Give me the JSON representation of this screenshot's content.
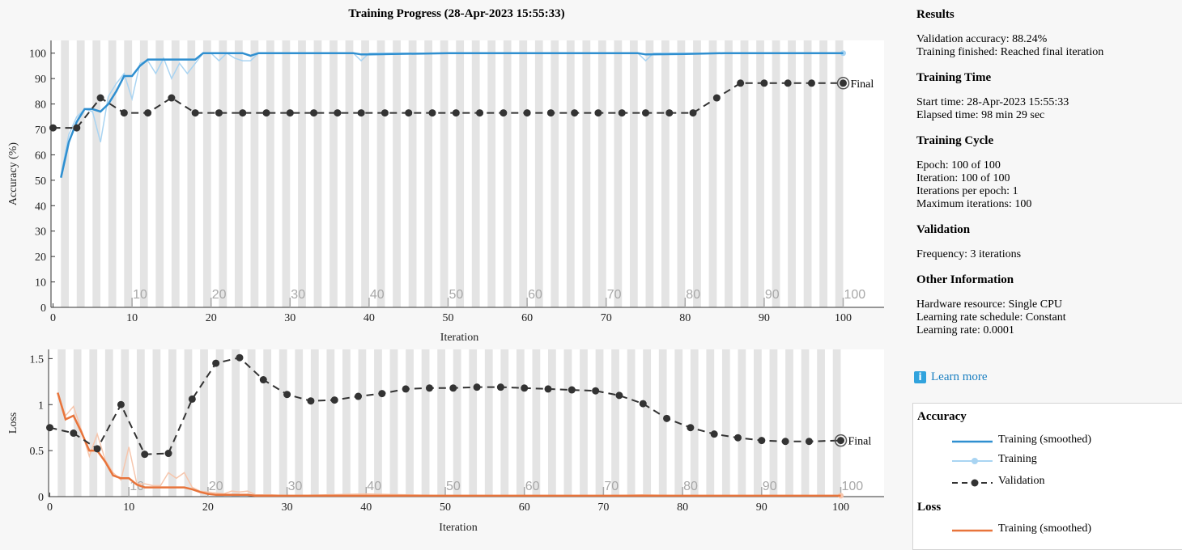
{
  "title": "Training Progress (28-Apr-2023 15:55:33)",
  "chart_data": [
    {
      "type": "line",
      "id": "accuracy",
      "ylabel": "Accuracy (%)",
      "xlabel": "Iteration",
      "xlim": [
        0,
        100
      ],
      "ylim": [
        0,
        105
      ],
      "xticks": [
        0,
        10,
        20,
        30,
        40,
        50,
        60,
        70,
        80,
        90,
        100
      ],
      "yticks": [
        0,
        10,
        20,
        30,
        40,
        50,
        60,
        70,
        80,
        90,
        100
      ],
      "epoch_labels": [
        10,
        20,
        30,
        40,
        50,
        60,
        70,
        80,
        90,
        100
      ],
      "final_label": "Final",
      "series": [
        {
          "name": "Training (smoothed)",
          "color": "#2f8fd0",
          "x": [
            1,
            2,
            3,
            4,
            5,
            6,
            7,
            8,
            9,
            10,
            11,
            12,
            13,
            14,
            15,
            16,
            17,
            18,
            19,
            20,
            21,
            22,
            23,
            24,
            25,
            26,
            27,
            28,
            29,
            30,
            35,
            38,
            39,
            40,
            50,
            60,
            70,
            74,
            75,
            80,
            85,
            90,
            95,
            100
          ],
          "y": [
            51,
            65,
            73,
            78,
            78,
            77,
            80,
            85,
            91,
            91,
            95,
            97.5,
            97.5,
            97.5,
            97.5,
            97.5,
            97.5,
            97.5,
            100,
            100,
            100,
            100,
            100,
            100,
            99,
            100,
            100,
            100,
            100,
            100,
            100,
            100,
            99.5,
            99.5,
            100,
            100,
            100,
            100,
            99.5,
            99.7,
            100,
            100,
            100,
            100
          ]
        },
        {
          "name": "Training",
          "color": "#a9d4f2",
          "x": [
            1,
            2,
            3,
            4,
            5,
            6,
            7,
            8,
            9,
            10,
            11,
            12,
            13,
            14,
            15,
            16,
            17,
            18,
            19,
            20,
            21,
            22,
            23,
            24,
            25,
            26,
            27,
            28,
            29,
            30,
            35,
            38,
            39,
            40,
            50,
            60,
            70,
            74,
            75,
            76,
            80,
            90,
            100
          ],
          "y": [
            52,
            68,
            75,
            78,
            77,
            65,
            83,
            88,
            92,
            82,
            96,
            97,
            92,
            98,
            90,
            96,
            92,
            96,
            100,
            100,
            97,
            100,
            98,
            97,
            97,
            100,
            100,
            100,
            100,
            100,
            100,
            100,
            97,
            100,
            100,
            100,
            100,
            100,
            97,
            100,
            100,
            100,
            100
          ]
        },
        {
          "name": "Validation",
          "color": "#333333",
          "x": [
            0,
            3,
            6,
            9,
            12,
            15,
            18,
            21,
            24,
            27,
            30,
            33,
            36,
            39,
            42,
            45,
            48,
            51,
            54,
            57,
            60,
            63,
            66,
            69,
            72,
            75,
            78,
            81,
            84,
            87,
            90,
            93,
            96,
            100
          ],
          "y": [
            70.6,
            70.6,
            82.4,
            76.5,
            76.5,
            82.4,
            76.5,
            76.5,
            76.5,
            76.5,
            76.5,
            76.5,
            76.5,
            76.5,
            76.5,
            76.5,
            76.5,
            76.5,
            76.5,
            76.5,
            76.5,
            76.5,
            76.5,
            76.5,
            76.5,
            76.5,
            76.5,
            76.5,
            82.4,
            88.2,
            88.2,
            88.2,
            88.2,
            88.2
          ]
        }
      ]
    },
    {
      "type": "line",
      "id": "loss",
      "ylabel": "Loss",
      "xlabel": "Iteration",
      "xlim": [
        0,
        100
      ],
      "ylim": [
        0,
        1.6
      ],
      "xticks": [
        0,
        10,
        20,
        30,
        40,
        50,
        60,
        70,
        80,
        90,
        100
      ],
      "yticks": [
        0,
        0.5,
        1,
        1.5
      ],
      "epoch_labels": [
        10,
        20,
        30,
        40,
        50,
        60,
        70,
        80,
        90,
        100
      ],
      "final_label": "Final",
      "series": [
        {
          "name": "Training (smoothed)",
          "color": "#e8743b",
          "x": [
            1,
            2,
            3,
            4,
            5,
            6,
            7,
            8,
            9,
            10,
            11,
            12,
            13,
            14,
            15,
            16,
            17,
            18,
            19,
            20,
            21,
            22,
            23,
            24,
            25,
            26,
            27,
            28,
            30,
            40,
            50,
            60,
            70,
            75,
            80,
            90,
            100
          ],
          "y": [
            1.13,
            0.84,
            0.88,
            0.7,
            0.5,
            0.5,
            0.38,
            0.23,
            0.2,
            0.2,
            0.13,
            0.1,
            0.1,
            0.1,
            0.1,
            0.1,
            0.1,
            0.08,
            0.05,
            0.03,
            0.02,
            0.02,
            0.02,
            0.02,
            0.02,
            0.01,
            0.01,
            0.01,
            0.01,
            0.01,
            0.01,
            0.01,
            0.01,
            0.01,
            0.01,
            0.01,
            0.01
          ]
        },
        {
          "name": "Training",
          "color": "#f6c6ad",
          "x": [
            1,
            2,
            3,
            4,
            5,
            6,
            7,
            8,
            9,
            10,
            11,
            12,
            13,
            14,
            15,
            16,
            17,
            18,
            19,
            20,
            21,
            22,
            23,
            24,
            25,
            26,
            27,
            28,
            30,
            40,
            50,
            60,
            70,
            75,
            80,
            90,
            100
          ],
          "y": [
            1.12,
            0.88,
            0.98,
            0.72,
            0.44,
            0.68,
            0.4,
            0.26,
            0.18,
            0.54,
            0.14,
            0.14,
            0.12,
            0.12,
            0.26,
            0.2,
            0.26,
            0.1,
            0.06,
            0.05,
            0.04,
            0.03,
            0.06,
            0.05,
            0.06,
            0.02,
            0.02,
            0.02,
            0.01,
            0.03,
            0.01,
            0.01,
            0.01,
            0.02,
            0.01,
            0.01,
            0.01
          ]
        },
        {
          "name": "Validation",
          "color": "#333333",
          "x": [
            0,
            3,
            6,
            9,
            12,
            15,
            18,
            21,
            24,
            27,
            30,
            33,
            36,
            39,
            42,
            45,
            48,
            51,
            54,
            57,
            60,
            63,
            66,
            69,
            72,
            75,
            78,
            81,
            84,
            87,
            90,
            93,
            96,
            100
          ],
          "y": [
            0.75,
            0.69,
            0.52,
            1.0,
            0.46,
            0.47,
            1.06,
            1.45,
            1.51,
            1.27,
            1.11,
            1.04,
            1.05,
            1.09,
            1.12,
            1.17,
            1.18,
            1.18,
            1.19,
            1.19,
            1.18,
            1.17,
            1.16,
            1.15,
            1.1,
            1.01,
            0.85,
            0.75,
            0.68,
            0.64,
            0.61,
            0.6,
            0.6,
            0.61
          ]
        }
      ]
    }
  ],
  "info": {
    "results": {
      "heading": "Results",
      "lines": [
        "Validation accuracy: 88.24%",
        "Training finished: Reached final iteration"
      ]
    },
    "training_time": {
      "heading": "Training Time",
      "lines": [
        "Start time: 28-Apr-2023 15:55:33",
        "Elapsed time: 98 min 29 sec"
      ]
    },
    "training_cycle": {
      "heading": "Training Cycle",
      "lines": [
        "Epoch: 100 of 100",
        "Iteration: 100 of 100",
        "Iterations per epoch: 1",
        "Maximum iterations: 100"
      ]
    },
    "validation": {
      "heading": "Validation",
      "lines": [
        "Frequency: 3 iterations"
      ]
    },
    "other": {
      "heading": "Other Information",
      "lines": [
        "Hardware resource: Single CPU",
        "Learning rate schedule: Constant",
        "Learning rate: 0.0001"
      ]
    }
  },
  "learn_more": {
    "icon": "info-icon",
    "label": "Learn more"
  },
  "legend": {
    "accuracy_heading": "Accuracy",
    "loss_heading": "Loss",
    "accuracy_items": [
      {
        "label": "Training (smoothed)",
        "color": "#2f8fd0",
        "style": "solid"
      },
      {
        "label": "Training",
        "color": "#a9d4f2",
        "style": "marker"
      },
      {
        "label": "Validation",
        "color": "#333333",
        "style": "dashed-marker"
      }
    ],
    "loss_items": [
      {
        "label": "Training (smoothed)",
        "color": "#e8743b",
        "style": "solid"
      }
    ]
  }
}
